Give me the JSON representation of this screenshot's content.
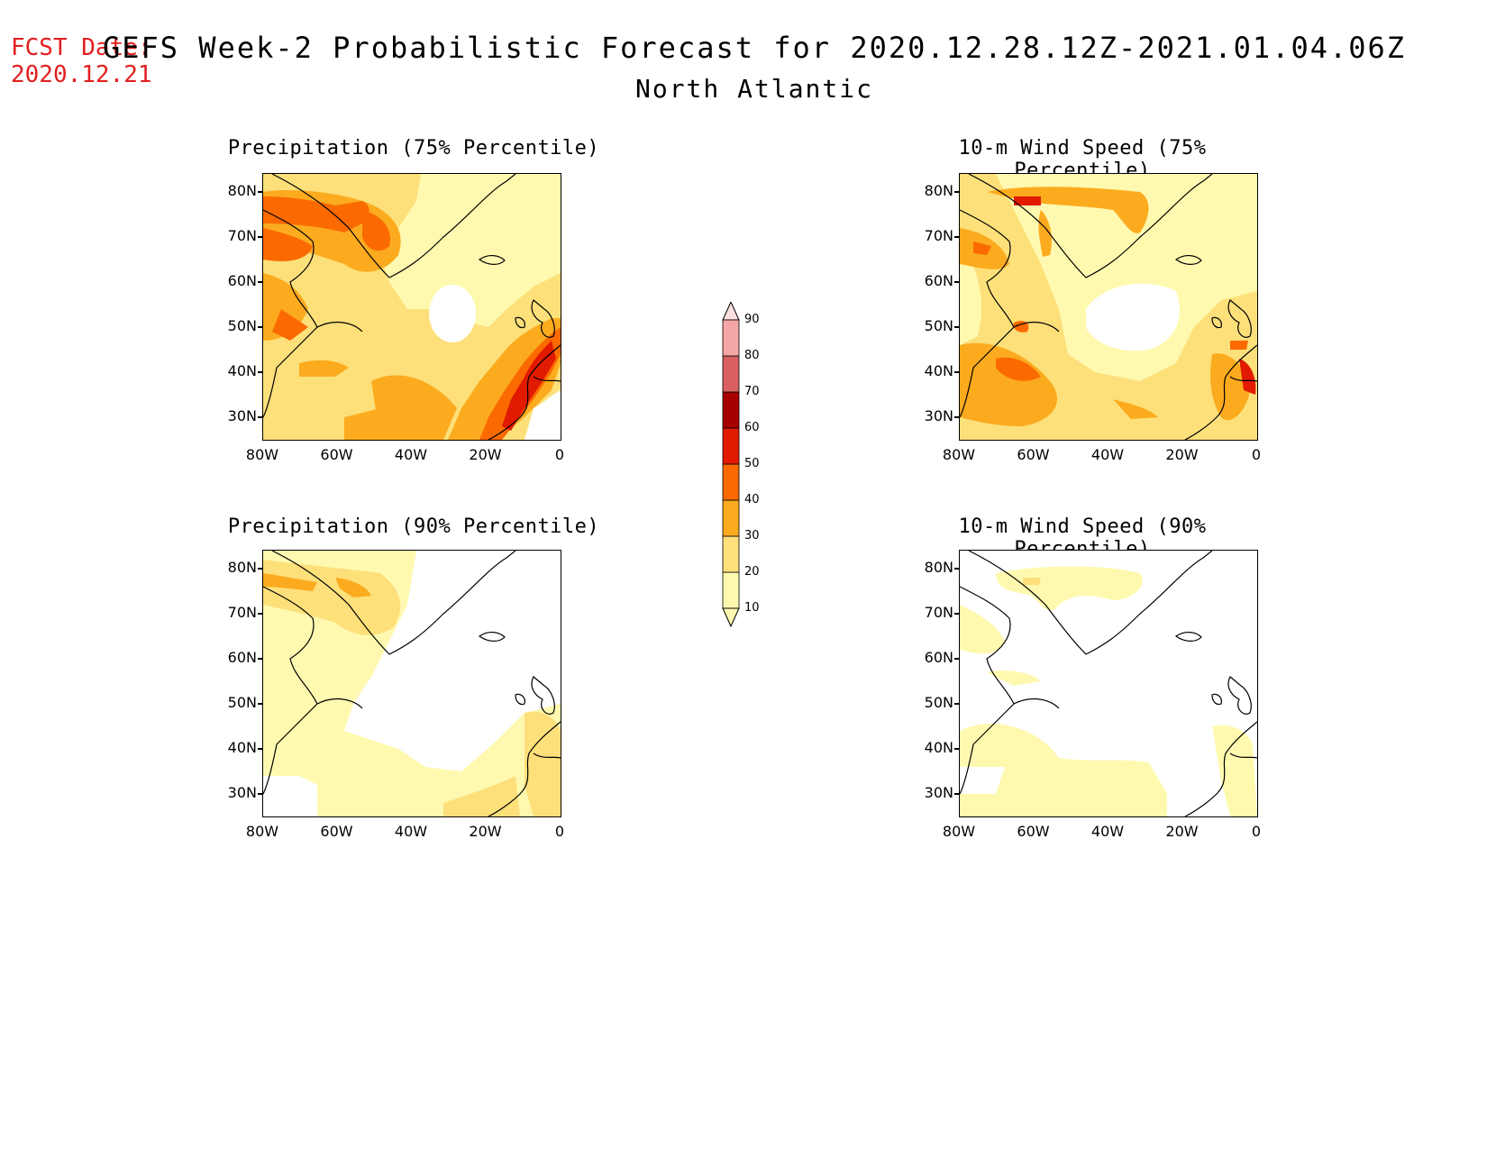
{
  "header": {
    "fcst_label": "FCST Date:",
    "fcst_date": "2020.12.21",
    "title": "GEFS Week-2 Probabilistic Forecast for 2020.12.28.12Z-2021.01.04.06Z",
    "subtitle": "North Atlantic"
  },
  "panels": [
    {
      "title": "Precipitation (75% Percentile)"
    },
    {
      "title": "10-m Wind Speed (75% Percentile)"
    },
    {
      "title": "Precipitation (90% Percentile)"
    },
    {
      "title": "10-m Wind Speed (90% Percentile)"
    }
  ],
  "axes": {
    "lat_ticks": [
      "80N",
      "70N",
      "60N",
      "50N",
      "40N",
      "30N"
    ],
    "lon_ticks": [
      "80W",
      "60W",
      "40W",
      "20W",
      "0"
    ],
    "lat_range": [
      25,
      84
    ],
    "lon_range": [
      -80,
      0
    ]
  },
  "colorbar": {
    "levels": [
      "10",
      "20",
      "30",
      "40",
      "50",
      "60",
      "70",
      "80",
      "90"
    ],
    "colors": [
      "#fff9b0",
      "#fde07a",
      "#fcab1f",
      "#fb6a00",
      "#e21a00",
      "#a80000",
      "#d96060",
      "#f4a6a6",
      "#fde0e0"
    ]
  }
}
